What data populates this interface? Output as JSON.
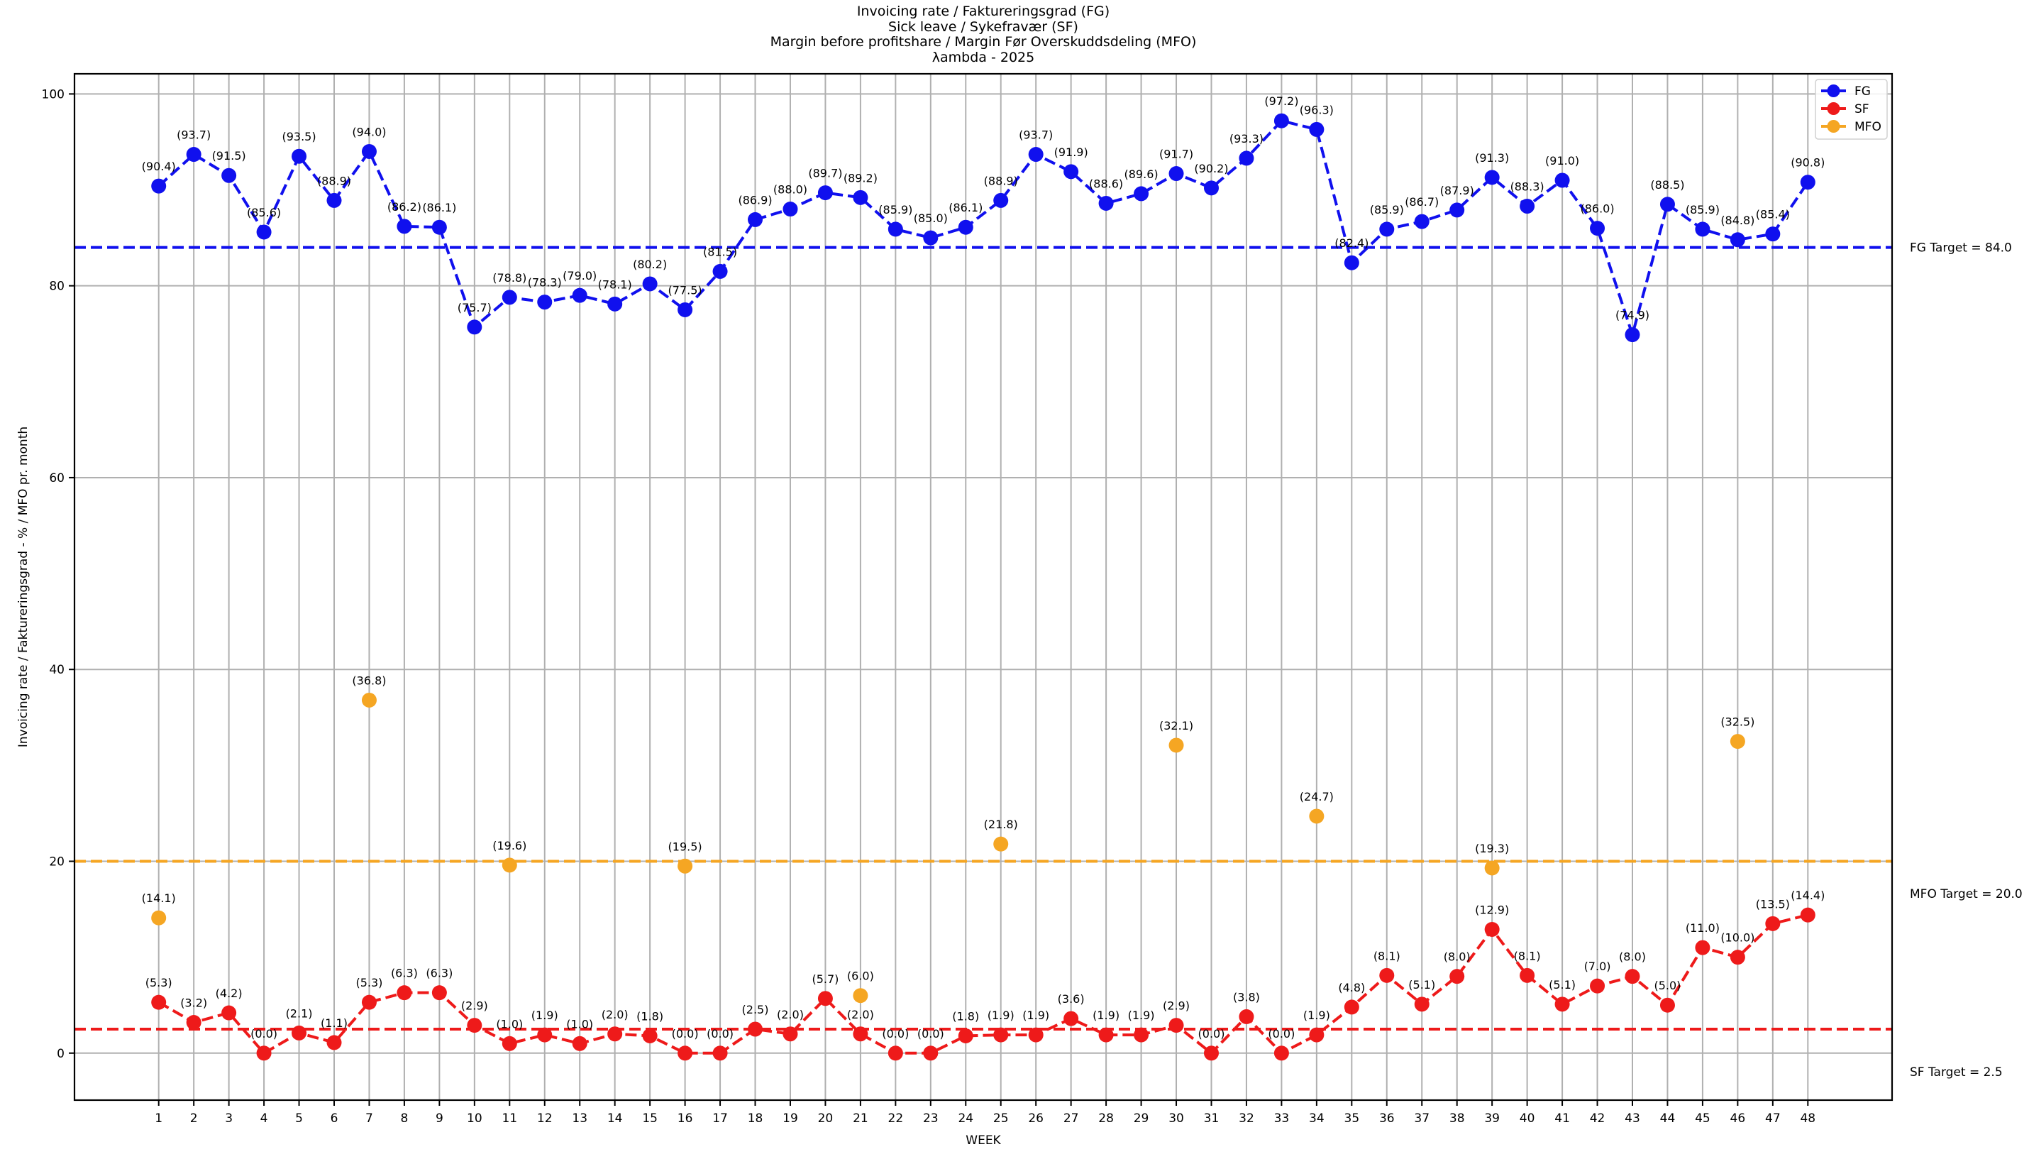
{
  "chart_data": {
    "type": "line",
    "title_lines": [
      "Invoicing rate / Faktureringsgrad (FG)",
      "Sick leave / Sykefravær (SF)",
      "Margin before profitshare / Margin Før Overskuddsdeling (MFO)",
      "λambda - 2025"
    ],
    "xlabel": "WEEK",
    "ylabel": "Invoicing rate / Faktureringsgrad - % / MFO pr. month",
    "x": [
      1,
      2,
      3,
      4,
      5,
      6,
      7,
      8,
      9,
      10,
      11,
      12,
      13,
      14,
      15,
      16,
      17,
      18,
      19,
      20,
      21,
      22,
      23,
      24,
      25,
      26,
      27,
      28,
      29,
      30,
      31,
      32,
      33,
      34,
      35,
      36,
      37,
      38,
      39,
      40,
      41,
      42,
      43,
      44,
      45,
      46,
      47,
      48
    ],
    "xlim": [
      -1.4,
      50.4
    ],
    "ylim": [
      -4.9,
      102.1
    ],
    "yticks": [
      0,
      20,
      40,
      60,
      80,
      100
    ],
    "grid": true,
    "legend_position": "top-right",
    "series": [
      {
        "name": "FG",
        "color": "#1010ee",
        "style": "dashed-line-markers",
        "values": [
          90.4,
          93.7,
          91.5,
          85.6,
          93.5,
          88.9,
          94.0,
          86.2,
          86.1,
          75.7,
          78.8,
          78.3,
          79.0,
          78.1,
          80.2,
          77.5,
          81.5,
          86.9,
          88.0,
          89.7,
          89.2,
          85.9,
          85.0,
          86.1,
          88.9,
          93.7,
          91.9,
          88.6,
          89.6,
          91.7,
          90.2,
          93.3,
          97.2,
          96.3,
          82.4,
          85.9,
          86.7,
          87.9,
          91.3,
          88.3,
          91.0,
          86.0,
          74.9,
          88.5,
          85.9,
          84.8,
          85.4,
          90.8
        ]
      },
      {
        "name": "SF",
        "color": "#ee1a1a",
        "style": "dashed-line-markers",
        "values": [
          5.3,
          3.2,
          4.2,
          0.0,
          2.1,
          1.1,
          5.3,
          6.3,
          6.3,
          2.9,
          1.0,
          1.9,
          1.0,
          2.0,
          1.8,
          0.0,
          0.0,
          2.5,
          2.0,
          5.7,
          2.0,
          0.0,
          0.0,
          1.8,
          1.9,
          1.9,
          3.6,
          1.9,
          1.9,
          2.9,
          0.0,
          3.8,
          0.0,
          1.9,
          4.8,
          8.1,
          5.1,
          8.0,
          12.9,
          8.1,
          5.1,
          7.0,
          8.0,
          5.0,
          11.0,
          10.0,
          13.5,
          14.4
        ]
      },
      {
        "name": "MFO",
        "color": "#f5a623",
        "style": "markers",
        "points": [
          [
            1,
            14.1
          ],
          [
            7,
            36.8
          ],
          [
            11,
            19.6
          ],
          [
            16,
            19.5
          ],
          [
            21,
            6.0
          ],
          [
            25,
            21.8
          ],
          [
            30,
            32.1
          ],
          [
            34,
            24.7
          ],
          [
            39,
            19.3
          ],
          [
            46,
            32.5
          ]
        ]
      }
    ],
    "targets": [
      {
        "label": "FG Target = 84.0",
        "value": 84.0,
        "color": "#1010ee"
      },
      {
        "label": "MFO Target = 20.0",
        "value": 20.0,
        "color": "#f5a623"
      },
      {
        "label": "SF Target = 2.5",
        "value": 2.5,
        "color": "#ee1a1a"
      }
    ]
  }
}
